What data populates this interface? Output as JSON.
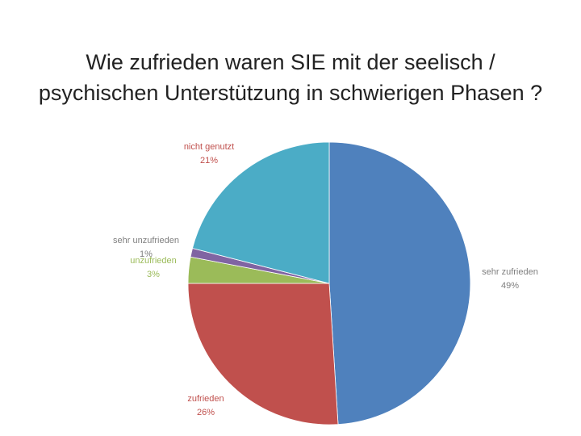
{
  "chart_data": {
    "type": "pie",
    "title_lines": [
      "Wie zufrieden waren SIE mit der seelisch /",
      "psychischen Unterstützung in schwierigen Phasen ?"
    ],
    "start": "12 o'clock",
    "direction": "clockwise",
    "slices": [
      {
        "label": "sehr zufrieden",
        "value": 49,
        "display": "49%",
        "color": "#4F81BD",
        "label_color": "#7F7F7F"
      },
      {
        "label": "zufrieden",
        "value": 26,
        "display": "26%",
        "color": "#C0504D",
        "label_color": "#C0504D"
      },
      {
        "label": "unzufrieden",
        "value": 3,
        "display": "3%",
        "color": "#9BBB59",
        "label_color": "#9BBB59"
      },
      {
        "label": "sehr unzufrieden",
        "value": 1,
        "display": "1%",
        "color": "#8064A2",
        "label_color": "#7F7F7F"
      },
      {
        "label": "nicht genutzt",
        "value": 21,
        "display": "21%",
        "color": "#4BACC6",
        "label_color": "#C0504D"
      }
    ]
  }
}
